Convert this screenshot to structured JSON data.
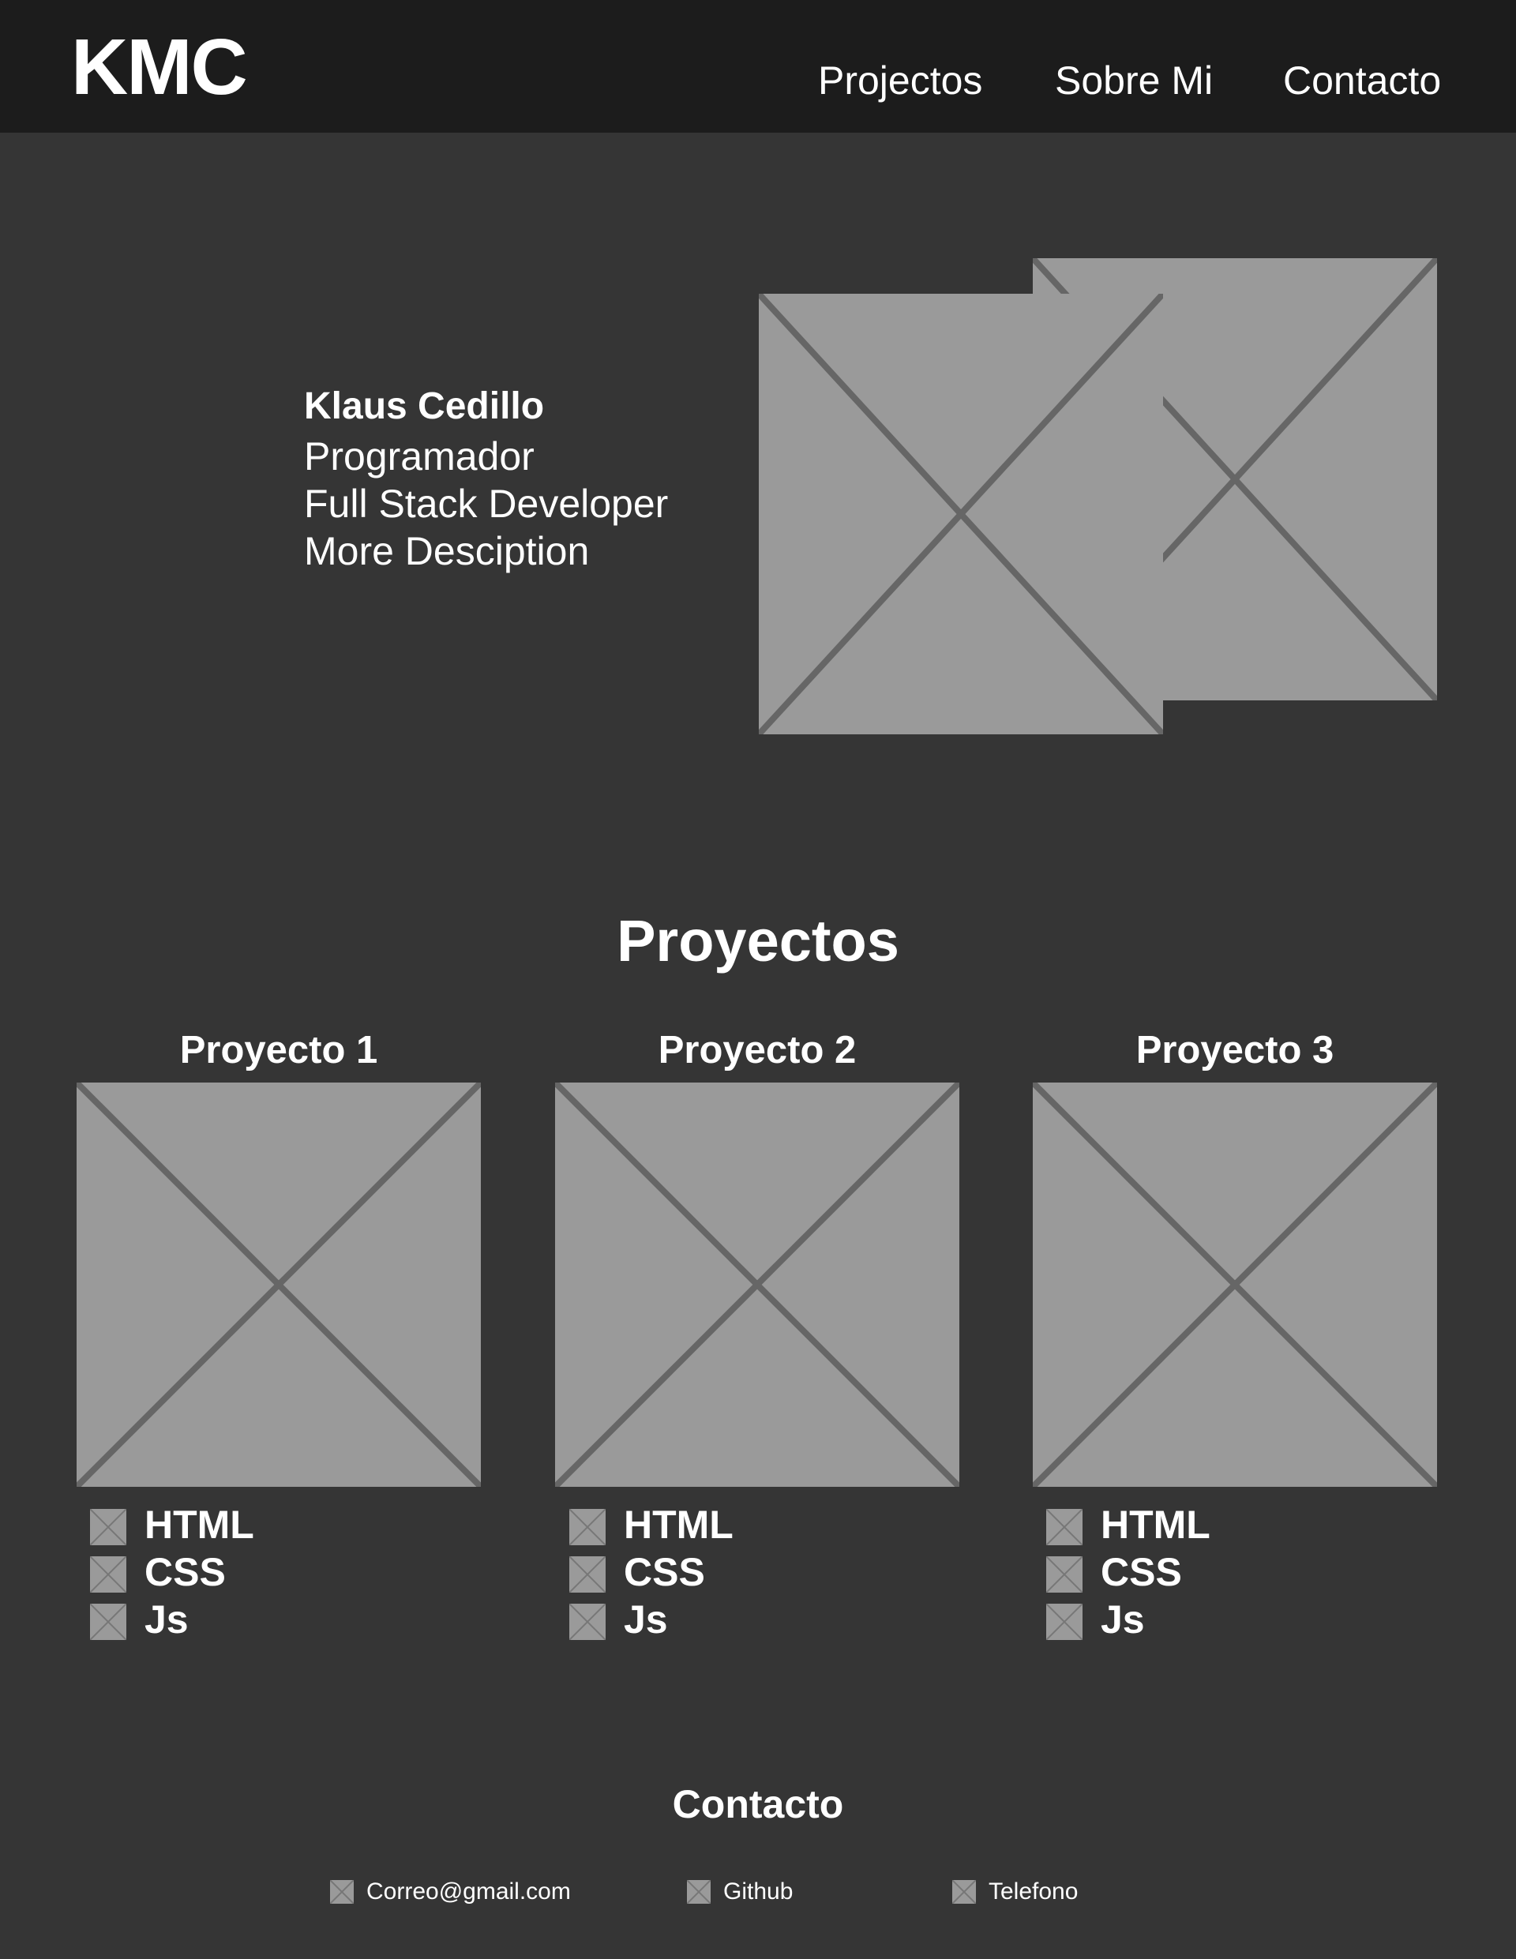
{
  "header": {
    "logo": "KMC",
    "nav": [
      "Projectos",
      "Sobre Mi",
      "Contacto"
    ]
  },
  "hero": {
    "name": "Klaus Cedillo",
    "lines": [
      "Programador",
      "Full Stack Developer",
      "More Desciption"
    ]
  },
  "projects": {
    "title": "Proyectos",
    "items": [
      {
        "title": "Proyecto 1",
        "tech": [
          "HTML",
          "CSS",
          "Js"
        ]
      },
      {
        "title": "Proyecto 2",
        "tech": [
          "HTML",
          "CSS",
          "Js"
        ]
      },
      {
        "title": "Proyecto 3",
        "tech": [
          "HTML",
          "CSS",
          "Js"
        ]
      }
    ]
  },
  "contact": {
    "title": "Contacto",
    "items": [
      "Correo@gmail.com",
      "Github",
      "Telefono"
    ]
  },
  "colors": {
    "page_background": "#353535",
    "header_background": "#1c1c1c",
    "placeholder_fill": "#9a9a9a",
    "placeholder_lines": "#666666",
    "text": "#ffffff"
  },
  "icons": {
    "placeholder": "image-placeholder-icon"
  }
}
